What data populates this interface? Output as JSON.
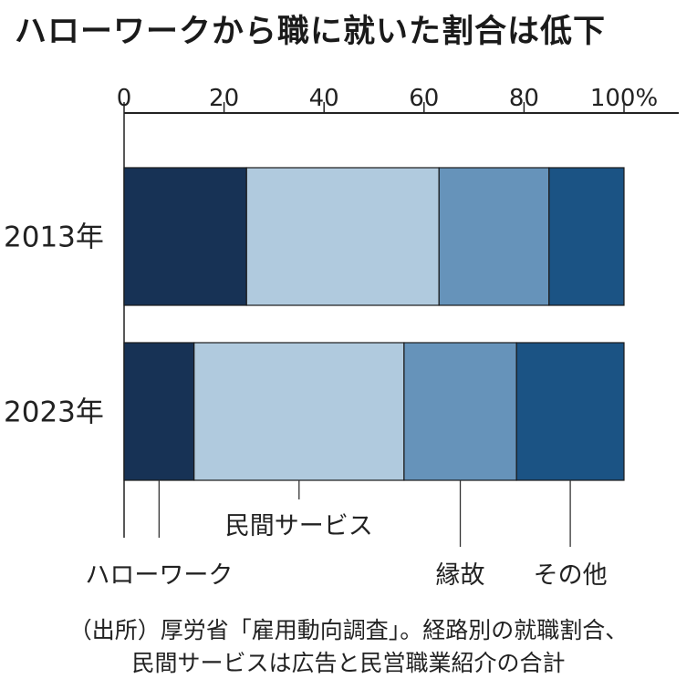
{
  "title": "ハローワークから職に就いた割合は低下",
  "chart_data": {
    "type": "bar",
    "stacked": true,
    "orientation": "horizontal",
    "categories": [
      "2013年",
      "2023年"
    ],
    "series": [
      {
        "name": "ハローワーク",
        "values": [
          24.5,
          14
        ],
        "color": "#173255"
      },
      {
        "name": "民間サービス",
        "values": [
          38.5,
          42
        ],
        "color": "#b0cade"
      },
      {
        "name": "縁故",
        "values": [
          22,
          22.5
        ],
        "color": "#6693ba"
      },
      {
        "name": "その他",
        "values": [
          15,
          21.5
        ],
        "color": "#1b5384"
      }
    ],
    "xticks": [
      "0",
      "20",
      "40",
      "60",
      "80",
      "100"
    ],
    "xticks_values": [
      0,
      20,
      40,
      60,
      80,
      100
    ],
    "x_unit": "%",
    "xlim": [
      0,
      100
    ],
    "legend_placement": "bottom (callout lines)"
  },
  "notes": [
    "（出所）厚労省「雇用動向調査」。経路別の就職割合、",
    "民間サービスは広告と民営職業紹介の合計"
  ]
}
